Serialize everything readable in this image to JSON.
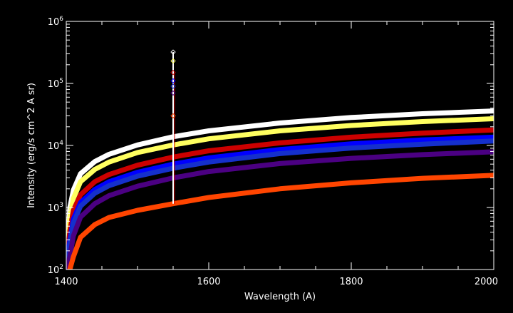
{
  "chart_data": {
    "type": "line",
    "title": "",
    "xlabel": "Wavelength (A)",
    "ylabel": "Intensity (erg/s cm^2 A sr)",
    "x_range": [
      1400,
      2000
    ],
    "y_range": [
      100,
      1000000
    ],
    "y_scale": "log",
    "x_ticks": [
      "1400",
      "1600",
      "1800",
      "2000"
    ],
    "y_ticks": [
      {
        "base": "10",
        "exp": "2",
        "value": 100
      },
      {
        "base": "10",
        "exp": "3",
        "value": 1000
      },
      {
        "base": "10",
        "exp": "4",
        "value": 10000
      },
      {
        "base": "10",
        "exp": "5",
        "value": 100000
      },
      {
        "base": "10",
        "exp": "6",
        "value": 1000000
      }
    ],
    "grid": false,
    "background": "#000000",
    "axis_color": "#ffffff",
    "series": [
      {
        "color": "#ffffff",
        "x": [
          1400,
          1405,
          1410,
          1420,
          1440,
          1460,
          1500,
          1550,
          1600,
          1700,
          1800,
          1900,
          2000
        ],
        "y": [
          100,
          1000,
          1900,
          3500,
          5500,
          7200,
          10200,
          13800,
          17200,
          23000,
          28200,
          32500,
          36000
        ]
      },
      {
        "color": "#ffff60",
        "x": [
          1400,
          1405,
          1410,
          1420,
          1440,
          1460,
          1500,
          1550,
          1600,
          1700,
          1800,
          1900,
          2000
        ],
        "y": [
          100,
          700,
          1400,
          2600,
          4100,
          5400,
          7700,
          10200,
          12800,
          17200,
          21000,
          24300,
          27000
        ]
      },
      {
        "color": "#cc0000",
        "x": [
          1400,
          1405,
          1410,
          1420,
          1440,
          1460,
          1500,
          1550,
          1600,
          1700,
          1800,
          1900,
          2000
        ],
        "y": [
          100,
          420,
          900,
          1600,
          2600,
          3400,
          4800,
          6500,
          8200,
          11000,
          13600,
          15800,
          17800
        ]
      },
      {
        "color": "#0000ff",
        "x": [
          1400,
          1405,
          1410,
          1420,
          1440,
          1460,
          1500,
          1550,
          1600,
          1700,
          1800,
          1900,
          2000
        ],
        "y": [
          100,
          300,
          650,
          1200,
          1950,
          2600,
          3700,
          5000,
          6300,
          8600,
          10600,
          12300,
          13600
        ]
      },
      {
        "color": "#1530cc",
        "x": [
          1400,
          1405,
          1410,
          1420,
          1440,
          1460,
          1500,
          1550,
          1600,
          1700,
          1800,
          1900,
          2000
        ],
        "y": [
          100,
          260,
          560,
          1050,
          1700,
          2250,
          3200,
          4300,
          5400,
          7400,
          9100,
          10500,
          11800
        ]
      },
      {
        "color": "#4b0082",
        "x": [
          1400,
          1405,
          1410,
          1420,
          1440,
          1460,
          1500,
          1550,
          1600,
          1700,
          1800,
          1900,
          2000
        ],
        "y": [
          100,
          160,
          350,
          700,
          1150,
          1550,
          2200,
          3000,
          3800,
          5100,
          6200,
          7100,
          7900
        ]
      },
      {
        "color": "#ff4500",
        "x": [
          1400,
          1405,
          1410,
          1420,
          1440,
          1460,
          1500,
          1550,
          1600,
          1700,
          1800,
          1900,
          2000
        ],
        "y": [
          60,
          100,
          160,
          330,
          530,
          690,
          900,
          1150,
          1450,
          2000,
          2500,
          2950,
          3300
        ]
      }
    ],
    "spike": {
      "x": 1550,
      "y_bottom": 1150,
      "y_top": 320000,
      "markers": [
        {
          "y": 320000,
          "color": "#ffffff"
        },
        {
          "y": 230000,
          "color": "#ffff60"
        },
        {
          "y": 150000,
          "color": "#cc0000"
        },
        {
          "y": 110000,
          "color": "#0000ff"
        },
        {
          "y": 90000,
          "color": "#1530cc"
        },
        {
          "y": 70000,
          "color": "#4b0082"
        },
        {
          "y": 30000,
          "color": "#ff4500"
        }
      ]
    }
  }
}
